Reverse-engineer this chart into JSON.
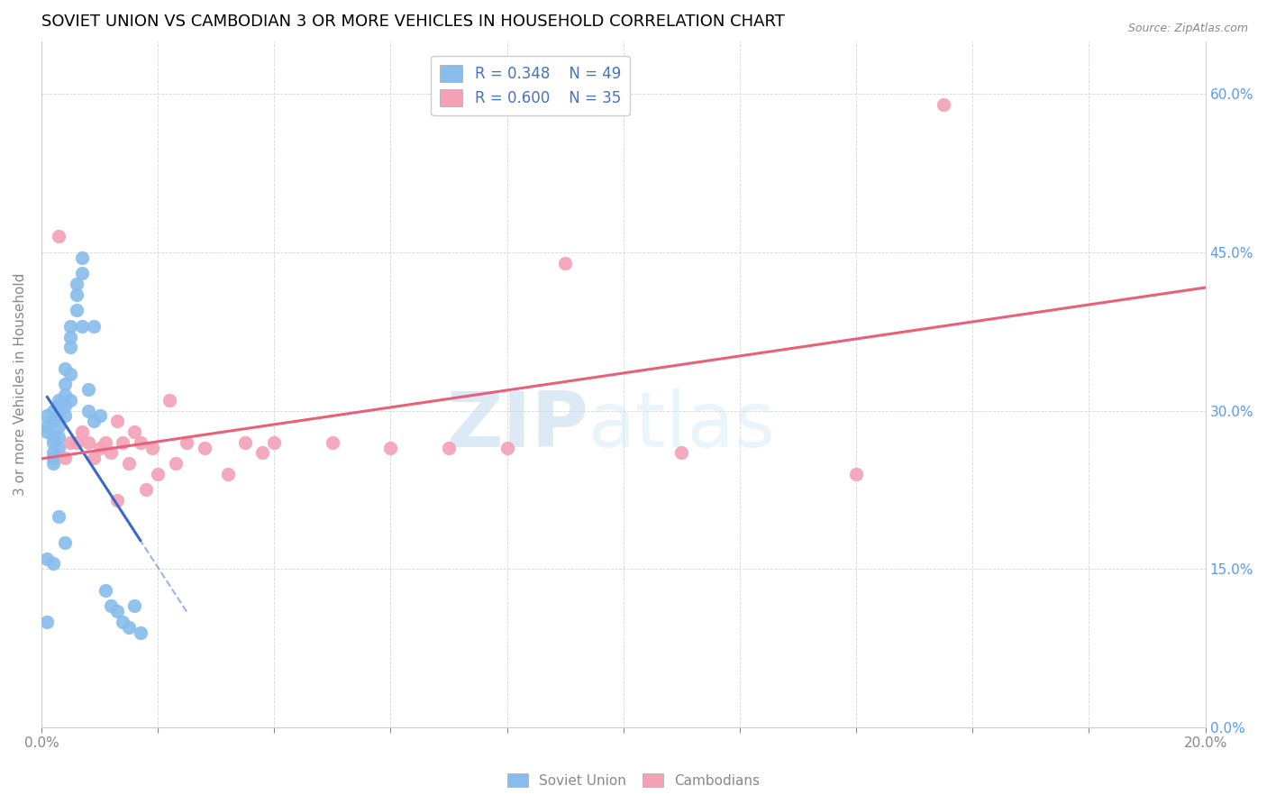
{
  "title": "SOVIET UNION VS CAMBODIAN 3 OR MORE VEHICLES IN HOUSEHOLD CORRELATION CHART",
  "source": "Source: ZipAtlas.com",
  "ylabel": "3 or more Vehicles in Household",
  "xlim": [
    0.0,
    0.2
  ],
  "ylim": [
    0.0,
    0.65
  ],
  "xticks": [
    0.0,
    0.02,
    0.04,
    0.06,
    0.08,
    0.1,
    0.12,
    0.14,
    0.16,
    0.18,
    0.2
  ],
  "yticks": [
    0.0,
    0.15,
    0.3,
    0.45,
    0.6
  ],
  "right_ytick_labels": [
    "0.0%",
    "15.0%",
    "30.0%",
    "45.0%",
    "60.0%"
  ],
  "soviet_R": 0.348,
  "soviet_N": 49,
  "cambodian_R": 0.6,
  "cambodian_N": 35,
  "soviet_color": "#87BCEC",
  "cambodian_color": "#F4A0B5",
  "trend_soviet_color": "#3A6BC4",
  "trend_cambodian_color": "#E8607A",
  "watermark_zip": "ZIP",
  "watermark_atlas": "atlas",
  "soviet_x": [
    0.001,
    0.001,
    0.001,
    0.001,
    0.001,
    0.002,
    0.002,
    0.002,
    0.002,
    0.002,
    0.002,
    0.002,
    0.002,
    0.003,
    0.003,
    0.003,
    0.003,
    0.003,
    0.003,
    0.003,
    0.004,
    0.004,
    0.004,
    0.004,
    0.004,
    0.004,
    0.005,
    0.005,
    0.005,
    0.005,
    0.005,
    0.006,
    0.006,
    0.006,
    0.007,
    0.007,
    0.007,
    0.008,
    0.008,
    0.009,
    0.009,
    0.01,
    0.011,
    0.012,
    0.013,
    0.014,
    0.015,
    0.016,
    0.017
  ],
  "soviet_y": [
    0.295,
    0.285,
    0.28,
    0.16,
    0.1,
    0.3,
    0.29,
    0.275,
    0.27,
    0.26,
    0.255,
    0.25,
    0.155,
    0.31,
    0.305,
    0.295,
    0.285,
    0.275,
    0.265,
    0.2,
    0.34,
    0.325,
    0.315,
    0.305,
    0.295,
    0.175,
    0.38,
    0.37,
    0.36,
    0.335,
    0.31,
    0.42,
    0.41,
    0.395,
    0.445,
    0.43,
    0.38,
    0.32,
    0.3,
    0.38,
    0.29,
    0.295,
    0.13,
    0.115,
    0.11,
    0.1,
    0.095,
    0.115,
    0.09
  ],
  "cambodian_x": [
    0.003,
    0.004,
    0.005,
    0.006,
    0.007,
    0.008,
    0.009,
    0.01,
    0.011,
    0.012,
    0.013,
    0.013,
    0.014,
    0.015,
    0.016,
    0.017,
    0.018,
    0.019,
    0.02,
    0.022,
    0.023,
    0.025,
    0.028,
    0.032,
    0.035,
    0.038,
    0.04,
    0.05,
    0.06,
    0.07,
    0.08,
    0.09,
    0.11,
    0.14,
    0.155
  ],
  "cambodian_y": [
    0.465,
    0.255,
    0.27,
    0.27,
    0.28,
    0.27,
    0.255,
    0.265,
    0.27,
    0.26,
    0.29,
    0.215,
    0.27,
    0.25,
    0.28,
    0.27,
    0.225,
    0.265,
    0.24,
    0.31,
    0.25,
    0.27,
    0.265,
    0.24,
    0.27,
    0.26,
    0.27,
    0.27,
    0.265,
    0.265,
    0.265,
    0.44,
    0.26,
    0.24,
    0.59
  ]
}
